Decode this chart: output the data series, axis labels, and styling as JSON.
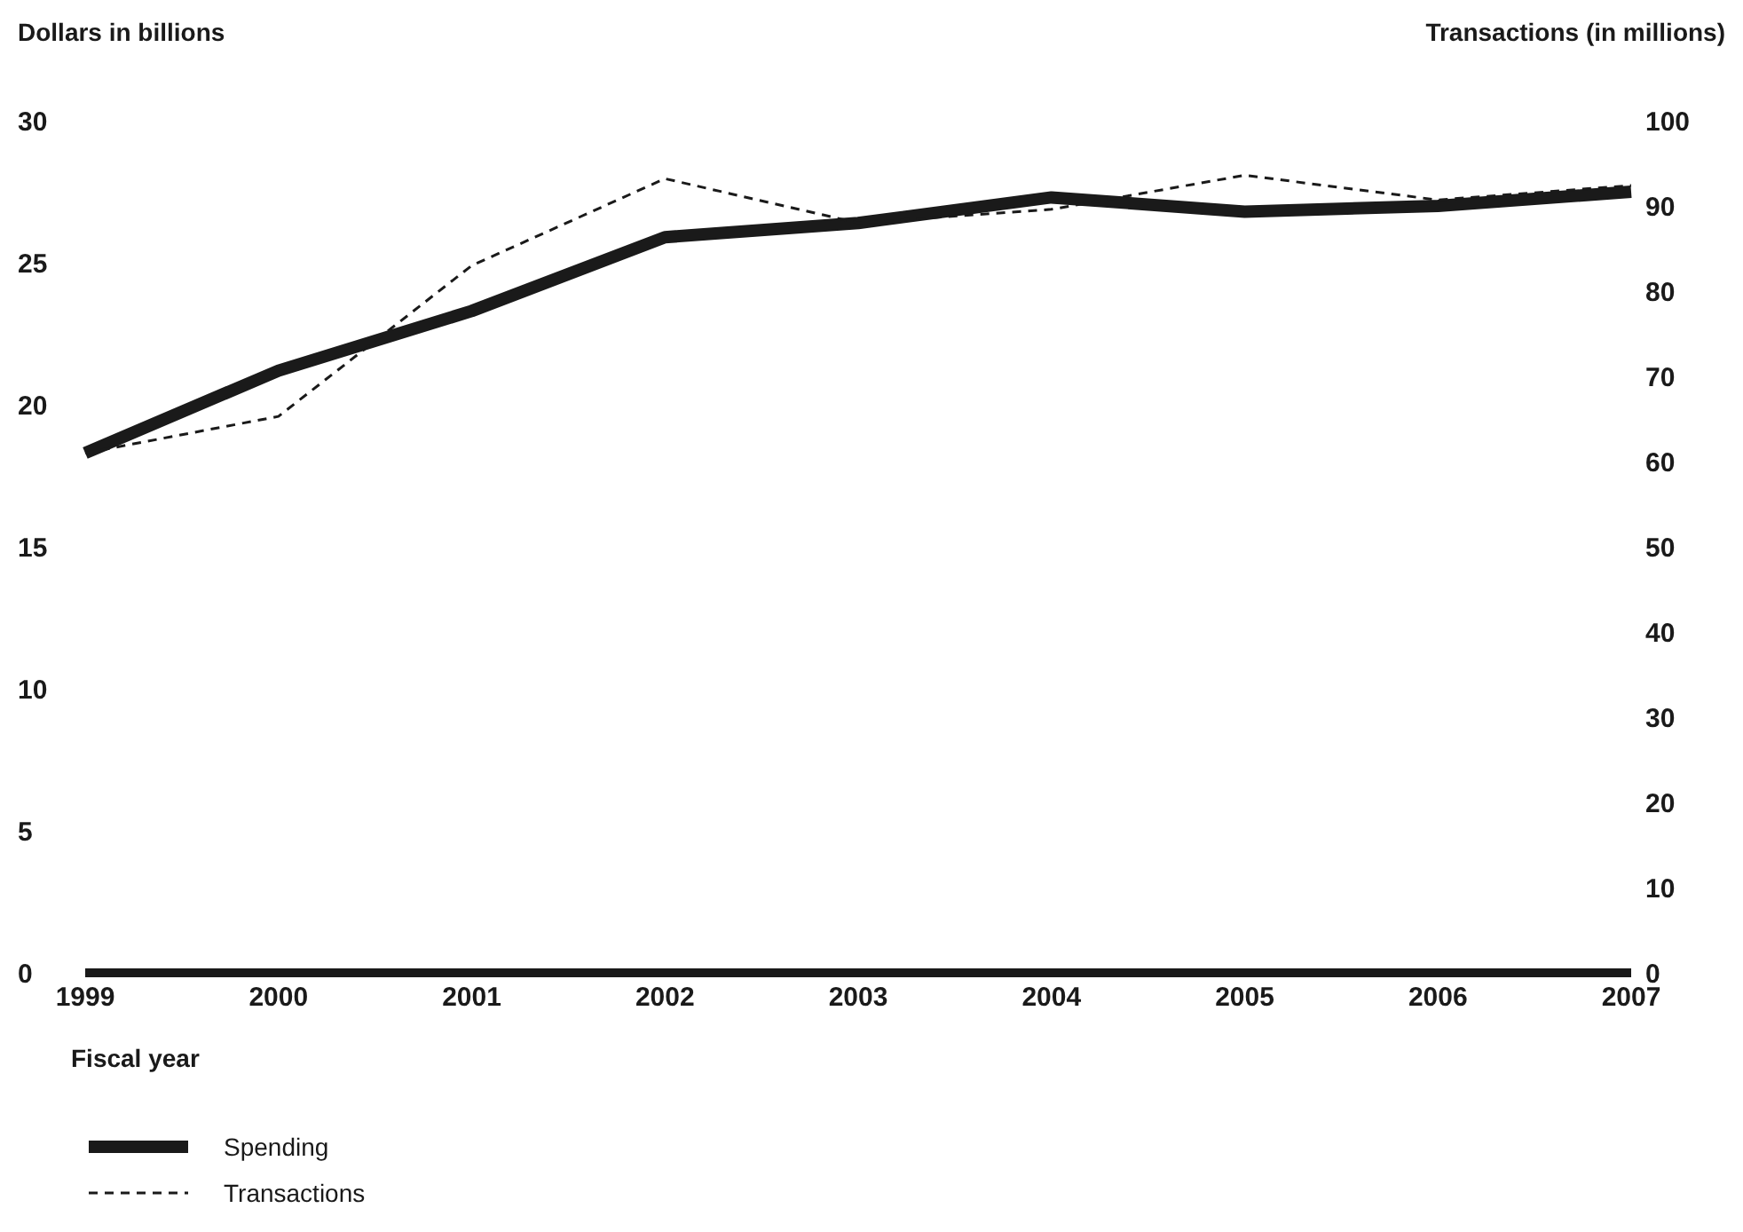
{
  "chart_data": {
    "type": "line",
    "xlabel": "Fiscal year",
    "ylabel": "Dollars in billions",
    "y2label": "Transactions (in millions)",
    "categories": [
      "1999",
      "2000",
      "2001",
      "2002",
      "2003",
      "2004",
      "2005",
      "2006",
      "2007"
    ],
    "series": [
      {
        "name": "Spending",
        "color": "#1a1a1a",
        "line_style": "solid",
        "values": [
          18.3,
          21.2,
          23.3,
          25.9,
          26.4,
          27.3,
          26.8,
          27.0,
          27.5
        ]
      },
      {
        "name": "Transactions",
        "color": "#1a1a1a",
        "line_style": "dashed",
        "axis": "y2",
        "values": [
          61,
          65.3,
          83,
          93.2,
          88,
          89.6,
          93.6,
          90.7,
          92.4
        ]
      }
    ],
    "ylim": [
      0,
      30
    ],
    "yticks": [
      0,
      5,
      10,
      15,
      20,
      25,
      30
    ],
    "y2lim": [
      0,
      100
    ],
    "y2ticks": [
      0,
      10,
      20,
      30,
      40,
      50,
      60,
      70,
      80,
      90,
      100
    ],
    "grid": false,
    "legend": "bottom",
    "marker": "none"
  }
}
